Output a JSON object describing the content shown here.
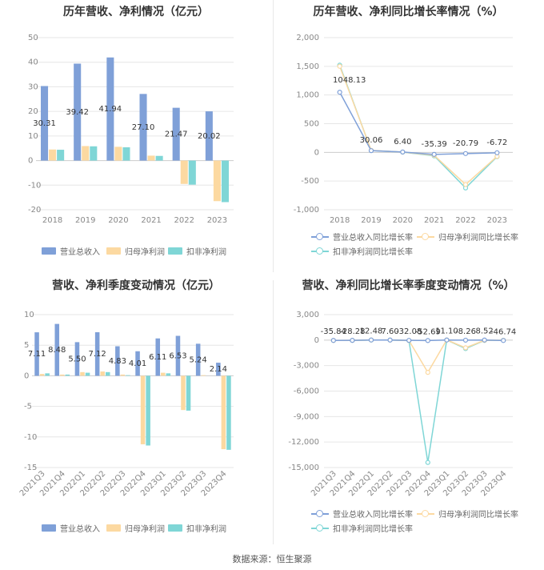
{
  "source": "数据来源：恒生聚源",
  "colors": {
    "revenue": "#7fa0d8",
    "parent": "#fcd9a1",
    "deduct": "#7fd6d6",
    "grid": "#e6e6e6",
    "zero": "#cccccc"
  },
  "chart_data": [
    {
      "type": "bar",
      "title": "历年营收、净利情况（亿元）",
      "categories": [
        "2018",
        "2019",
        "2020",
        "2021",
        "2022",
        "2023"
      ],
      "ylim": [
        -20,
        50
      ],
      "yticks": [
        "50",
        "40",
        "30",
        "20",
        "10",
        "0",
        "-10",
        "-20"
      ],
      "series": [
        {
          "name": "营业总收入",
          "values": [
            30.31,
            39.42,
            41.94,
            27.1,
            21.47,
            20.02
          ],
          "labels": [
            "30.31",
            "39.42",
            "41.94",
            "27.10",
            "21.47",
            "20.02"
          ]
        },
        {
          "name": "归母净利润",
          "values": [
            4.5,
            5.9,
            5.6,
            2.0,
            -9.5,
            -16.5
          ]
        },
        {
          "name": "扣非净利润",
          "values": [
            4.4,
            5.8,
            5.4,
            1.9,
            -9.8,
            -16.9
          ]
        }
      ]
    },
    {
      "type": "line",
      "title": "历年营收、净利同比增长率情况（%）",
      "categories": [
        "2018",
        "2019",
        "2020",
        "2021",
        "2022",
        "2023"
      ],
      "ylim": [
        -1000,
        2000
      ],
      "yticks": [
        "2,000",
        "1,500",
        "1,000",
        "500",
        "0",
        "-500",
        "-1,000"
      ],
      "series": [
        {
          "name": "营业总收入同比增长率",
          "values": [
            1048.13,
            30.06,
            6.4,
            -35.39,
            -20.79,
            -6.72
          ],
          "labels": [
            "1048.13",
            "30.06",
            "6.40",
            "-35.39",
            "-20.79",
            "-6.72"
          ]
        },
        {
          "name": "归母净利润同比增长率",
          "values": [
            1500,
            35,
            5,
            -50,
            -560,
            -70
          ]
        },
        {
          "name": "扣非净利润同比增长率",
          "values": [
            1520,
            32,
            4,
            -60,
            -620,
            -75
          ]
        }
      ]
    },
    {
      "type": "bar",
      "title": "营收、净利季度变动情况（亿元）",
      "categories": [
        "2021Q3",
        "2021Q4",
        "2022Q1",
        "2022Q2",
        "2022Q3",
        "2022Q4",
        "2023Q1",
        "2023Q2",
        "2023Q3",
        "2023Q4"
      ],
      "ylim": [
        -15,
        10
      ],
      "yticks": [
        "10",
        "5",
        "0",
        "-5",
        "-10",
        "-15"
      ],
      "series": [
        {
          "name": "营业总收入",
          "values": [
            7.11,
            8.48,
            5.5,
            7.12,
            4.83,
            4.01,
            6.11,
            6.53,
            5.24,
            2.14
          ],
          "labels": [
            "7.11",
            "8.48",
            "5.50",
            "7.12",
            "4.83",
            "4.01",
            "6.11",
            "6.53",
            "5.24",
            "2.14"
          ]
        },
        {
          "name": "归母净利润",
          "values": [
            0.3,
            0.2,
            0.6,
            0.7,
            0.2,
            -11.2,
            0.5,
            -5.6,
            0.1,
            -12.0
          ]
        },
        {
          "name": "扣非净利润",
          "values": [
            0.4,
            0.2,
            0.5,
            0.6,
            0.1,
            -11.4,
            0.4,
            -5.7,
            0.0,
            -12.1
          ]
        }
      ]
    },
    {
      "type": "line",
      "title": "营收、净利同比增长率季度变动情况（%）",
      "categories": [
        "2021Q3",
        "2021Q4",
        "2022Q1",
        "2022Q2",
        "2022Q3",
        "2022Q4",
        "2023Q1",
        "2023Q2",
        "2023Q3",
        "2023Q4"
      ],
      "ylim": [
        -15000,
        3000
      ],
      "yticks": [
        "3,000",
        "0",
        "-3,000",
        "-6,000",
        "-9,000",
        "-12,000",
        "-15,000"
      ],
      "series": [
        {
          "name": "营业总收入同比增长率",
          "values": [
            -35.84,
            -28.28,
            12.48,
            7.6,
            -32.08,
            -52.69,
            11.1,
            -8.26,
            8.52,
            -46.74
          ],
          "labels": [
            "-35.84",
            "-28.28",
            "12.48",
            "7.60",
            "-32.08",
            "-52.69",
            "11.10",
            "-8.26",
            "8.52",
            "-46.74"
          ]
        },
        {
          "name": "归母净利润同比增长率",
          "values": [
            -40,
            -30,
            10,
            5,
            -50,
            -3800,
            20,
            -900,
            -30,
            -20
          ]
        },
        {
          "name": "扣非净利润同比增长率",
          "values": [
            -45,
            -35,
            8,
            4,
            -60,
            -14400,
            15,
            -1000,
            -40,
            -25
          ]
        }
      ]
    }
  ]
}
